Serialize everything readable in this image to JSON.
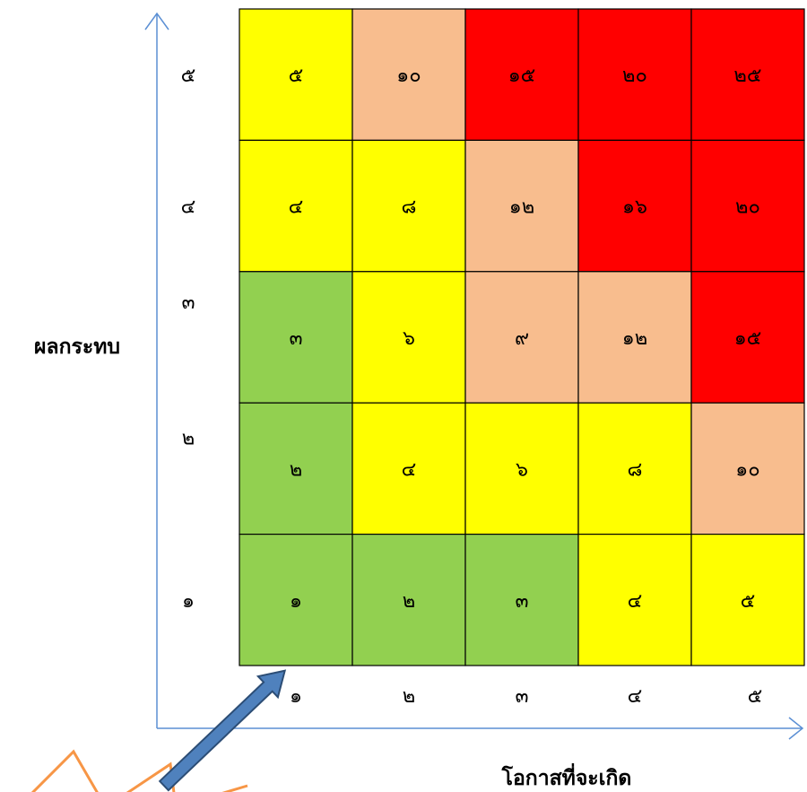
{
  "chart_data": {
    "type": "heatmap",
    "x_axis_title": "โอกาสที่จะเกิด",
    "y_axis_title": "ผลกระทบ",
    "x_tick_labels": [
      "๑",
      "๒",
      "๓",
      "๔",
      "๕"
    ],
    "y_tick_labels": [
      "๑",
      "๒",
      "๓",
      "๔",
      "๕"
    ],
    "rows": [
      {
        "impact": 5,
        "values": [
          5,
          10,
          15,
          20,
          25
        ],
        "labels": [
          "๕",
          "๑๐",
          "๑๕",
          "๒๐",
          "๒๕"
        ]
      },
      {
        "impact": 4,
        "values": [
          4,
          8,
          12,
          16,
          20
        ],
        "labels": [
          "๔",
          "๘",
          "๑๒",
          "๑๖",
          "๒๐"
        ]
      },
      {
        "impact": 3,
        "values": [
          3,
          6,
          9,
          12,
          15
        ],
        "labels": [
          "๓",
          "๖",
          "๙",
          "๑๒",
          "๑๕"
        ]
      },
      {
        "impact": 2,
        "values": [
          2,
          4,
          6,
          8,
          10
        ],
        "labels": [
          "๒",
          "๔",
          "๖",
          "๘",
          "๑๐"
        ]
      },
      {
        "impact": 1,
        "values": [
          1,
          2,
          3,
          4,
          5
        ],
        "labels": [
          "๑",
          "๒",
          "๓",
          "๔",
          "๕"
        ]
      }
    ],
    "color_bands": [
      {
        "max": 3,
        "color": "#92d050"
      },
      {
        "max": 8,
        "color": "#ffff00"
      },
      {
        "max": 12,
        "color": "#f8bd8e"
      },
      {
        "max": 25,
        "color": "#ff0000"
      }
    ]
  },
  "colors": {
    "axis": "#5b8fd4",
    "pointer_arrow_fill": "#4f81bd",
    "pointer_arrow_stroke": "#2c4d75",
    "burst": "#f79646",
    "grid_line": "#000000"
  },
  "icons": {
    "pointer": "arrow-up-right-icon",
    "burst": "starburst-icon"
  }
}
